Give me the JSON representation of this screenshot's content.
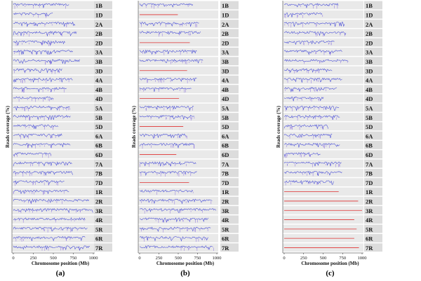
{
  "chart_data": [
    {
      "type": "line",
      "panel_label": "(a)",
      "title": "",
      "xlabel": "Chromosome position (Mb)",
      "ylabel": "Reads coverage (%)",
      "xlim": [
        0,
        1000
      ],
      "xticks": [
        0,
        250,
        500,
        750,
        1000
      ],
      "series": [
        {
          "name": "1B",
          "length_mb": 700,
          "status": "covered"
        },
        {
          "name": "1D",
          "length_mb": 495,
          "status": "covered"
        },
        {
          "name": "2A",
          "length_mb": 780,
          "status": "covered"
        },
        {
          "name": "2B",
          "length_mb": 800,
          "status": "covered"
        },
        {
          "name": "2D",
          "length_mb": 650,
          "status": "covered"
        },
        {
          "name": "3A",
          "length_mb": 750,
          "status": "covered"
        },
        {
          "name": "3B",
          "length_mb": 830,
          "status": "covered"
        },
        {
          "name": "3D",
          "length_mb": 615,
          "status": "covered"
        },
        {
          "name": "4A",
          "length_mb": 745,
          "status": "covered"
        },
        {
          "name": "4B",
          "length_mb": 675,
          "status": "covered"
        },
        {
          "name": "4D",
          "length_mb": 510,
          "status": "covered"
        },
        {
          "name": "5A",
          "length_mb": 710,
          "status": "covered"
        },
        {
          "name": "5B",
          "length_mb": 715,
          "status": "covered"
        },
        {
          "name": "5D",
          "length_mb": 565,
          "status": "covered"
        },
        {
          "name": "6A",
          "length_mb": 615,
          "status": "covered"
        },
        {
          "name": "6B",
          "length_mb": 720,
          "status": "covered"
        },
        {
          "name": "6D",
          "length_mb": 475,
          "status": "covered"
        },
        {
          "name": "7A",
          "length_mb": 735,
          "status": "covered"
        },
        {
          "name": "7B",
          "length_mb": 750,
          "status": "covered"
        },
        {
          "name": "7D",
          "length_mb": 640,
          "status": "covered"
        },
        {
          "name": "1R",
          "length_mb": 700,
          "status": "covered"
        },
        {
          "name": "2R",
          "length_mb": 950,
          "status": "covered"
        },
        {
          "name": "3R",
          "length_mb": 1000,
          "status": "covered"
        },
        {
          "name": "4R",
          "length_mb": 900,
          "status": "covered"
        },
        {
          "name": "5R",
          "length_mb": 930,
          "status": "covered"
        },
        {
          "name": "6R",
          "length_mb": 900,
          "status": "covered"
        },
        {
          "name": "7R",
          "length_mb": 960,
          "status": "covered"
        }
      ]
    },
    {
      "type": "line",
      "panel_label": "(b)",
      "title": "",
      "xlabel": "Chromosome position (Mb)",
      "ylabel": "Reads coverage (%)",
      "xlim": [
        0,
        1000
      ],
      "xticks": [
        0,
        250,
        500,
        750,
        1000
      ],
      "series": [
        {
          "name": "1B",
          "length_mb": 700,
          "status": "covered"
        },
        {
          "name": "1D",
          "length_mb": 495,
          "status": "absent"
        },
        {
          "name": "2A",
          "length_mb": 780,
          "status": "covered"
        },
        {
          "name": "2B",
          "length_mb": 800,
          "status": "covered"
        },
        {
          "name": "2D",
          "length_mb": 650,
          "status": "absent"
        },
        {
          "name": "3A",
          "length_mb": 750,
          "status": "covered"
        },
        {
          "name": "3B",
          "length_mb": 830,
          "status": "covered"
        },
        {
          "name": "3D",
          "length_mb": 615,
          "status": "absent"
        },
        {
          "name": "4A",
          "length_mb": 745,
          "status": "covered"
        },
        {
          "name": "4B",
          "length_mb": 675,
          "status": "covered"
        },
        {
          "name": "4D",
          "length_mb": 510,
          "status": "absent"
        },
        {
          "name": "5A",
          "length_mb": 710,
          "status": "covered"
        },
        {
          "name": "5B",
          "length_mb": 715,
          "status": "covered"
        },
        {
          "name": "5D",
          "length_mb": 565,
          "status": "absent"
        },
        {
          "name": "6A",
          "length_mb": 615,
          "status": "covered"
        },
        {
          "name": "6B",
          "length_mb": 720,
          "status": "covered"
        },
        {
          "name": "6D",
          "length_mb": 475,
          "status": "absent"
        },
        {
          "name": "7A",
          "length_mb": 735,
          "status": "covered"
        },
        {
          "name": "7B",
          "length_mb": 750,
          "status": "covered"
        },
        {
          "name": "7D",
          "length_mb": 640,
          "status": "absent"
        },
        {
          "name": "1R",
          "length_mb": 700,
          "status": "covered"
        },
        {
          "name": "2R",
          "length_mb": 950,
          "status": "covered"
        },
        {
          "name": "3R",
          "length_mb": 1000,
          "status": "covered"
        },
        {
          "name": "4R",
          "length_mb": 900,
          "status": "covered"
        },
        {
          "name": "5R",
          "length_mb": 930,
          "status": "covered"
        },
        {
          "name": "6R",
          "length_mb": 900,
          "status": "covered"
        },
        {
          "name": "7R",
          "length_mb": 960,
          "status": "covered"
        }
      ]
    },
    {
      "type": "line",
      "panel_label": "(c)",
      "title": "",
      "xlabel": "Chromosome position (Mb)",
      "ylabel": "Reads coverage (%)",
      "xlim": [
        0,
        1000
      ],
      "xticks": [
        0,
        250,
        500,
        750,
        1000
      ],
      "series": [
        {
          "name": "1B",
          "length_mb": 700,
          "status": "covered"
        },
        {
          "name": "1D",
          "length_mb": 495,
          "status": "covered"
        },
        {
          "name": "2A",
          "length_mb": 780,
          "status": "covered"
        },
        {
          "name": "2B",
          "length_mb": 800,
          "status": "covered"
        },
        {
          "name": "2D",
          "length_mb": 650,
          "status": "covered"
        },
        {
          "name": "3A",
          "length_mb": 750,
          "status": "covered"
        },
        {
          "name": "3B",
          "length_mb": 830,
          "status": "covered"
        },
        {
          "name": "3D",
          "length_mb": 615,
          "status": "covered"
        },
        {
          "name": "4A",
          "length_mb": 745,
          "status": "covered"
        },
        {
          "name": "4B",
          "length_mb": 675,
          "status": "covered"
        },
        {
          "name": "4D",
          "length_mb": 510,
          "status": "covered"
        },
        {
          "name": "5A",
          "length_mb": 710,
          "status": "covered"
        },
        {
          "name": "5B",
          "length_mb": 715,
          "status": "covered"
        },
        {
          "name": "5D",
          "length_mb": 565,
          "status": "covered"
        },
        {
          "name": "6A",
          "length_mb": 615,
          "status": "covered"
        },
        {
          "name": "6B",
          "length_mb": 720,
          "status": "covered"
        },
        {
          "name": "6D",
          "length_mb": 475,
          "status": "covered"
        },
        {
          "name": "7A",
          "length_mb": 735,
          "status": "covered"
        },
        {
          "name": "7B",
          "length_mb": 750,
          "status": "covered"
        },
        {
          "name": "7D",
          "length_mb": 640,
          "status": "covered"
        },
        {
          "name": "1R",
          "length_mb": 700,
          "status": "absent"
        },
        {
          "name": "2R",
          "length_mb": 950,
          "status": "absent"
        },
        {
          "name": "3R",
          "length_mb": 1000,
          "status": "absent"
        },
        {
          "name": "4R",
          "length_mb": 900,
          "status": "absent"
        },
        {
          "name": "5R",
          "length_mb": 930,
          "status": "absent"
        },
        {
          "name": "6R",
          "length_mb": 900,
          "status": "absent"
        },
        {
          "name": "7R",
          "length_mb": 960,
          "status": "absent"
        }
      ]
    }
  ],
  "colors": {
    "coverage_line": "#3f45d6",
    "coverage_tick": "#8a6fe0",
    "absent_line": "#e03030",
    "row_band": "#e9e9e9",
    "label_band": "#dcdcdc",
    "axis": "#222222"
  }
}
